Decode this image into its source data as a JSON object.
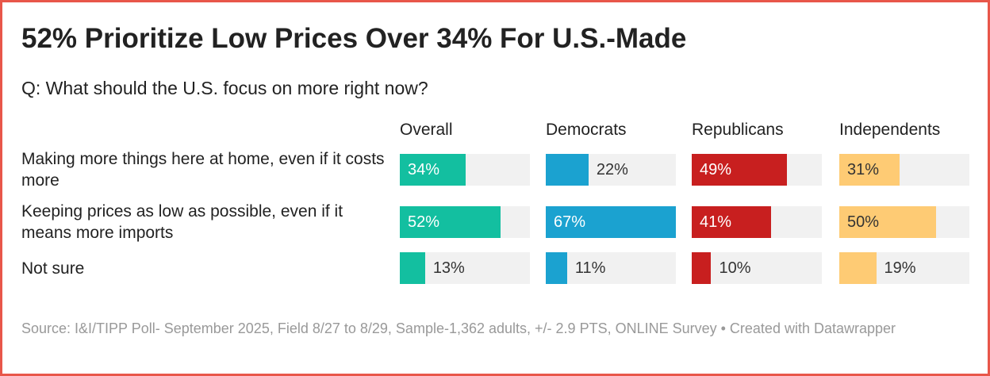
{
  "chart_data": {
    "type": "bar",
    "orientation": "horizontal",
    "title": "52% Prioritize Low Prices Over 34% For U.S.-Made",
    "subtitle": "Q: What should the U.S. focus on more right now?",
    "categories": [
      "Making more things here at home, even if it costs more",
      "Keeping prices as low as possible, even if it means more imports",
      "Not sure"
    ],
    "series": [
      {
        "name": "Overall",
        "color": "#13bfa0",
        "values": [
          34,
          52,
          13
        ],
        "value_labels": [
          "34%",
          "52%",
          "13%"
        ]
      },
      {
        "name": "Democrats",
        "color": "#1ba2d0",
        "values": [
          22,
          67,
          11
        ],
        "value_labels": [
          "22%",
          "67%",
          "11%"
        ]
      },
      {
        "name": "Republicans",
        "color": "#c81f1f",
        "values": [
          49,
          41,
          10
        ],
        "value_labels": [
          "49%",
          "41%",
          "10%"
        ]
      },
      {
        "name": "Independents",
        "color": "#fecb74",
        "values": [
          31,
          50,
          19
        ],
        "value_labels": [
          "31%",
          "50%",
          "19%"
        ]
      }
    ],
    "xlim": [
      0,
      67
    ],
    "source": "Source: I&I/TIPP Poll- September 2025, Field 8/27 to 8/29, Sample-1,362 adults, +/- 2.9 PTS, ONLINE Survey • Created with Datawrapper"
  }
}
